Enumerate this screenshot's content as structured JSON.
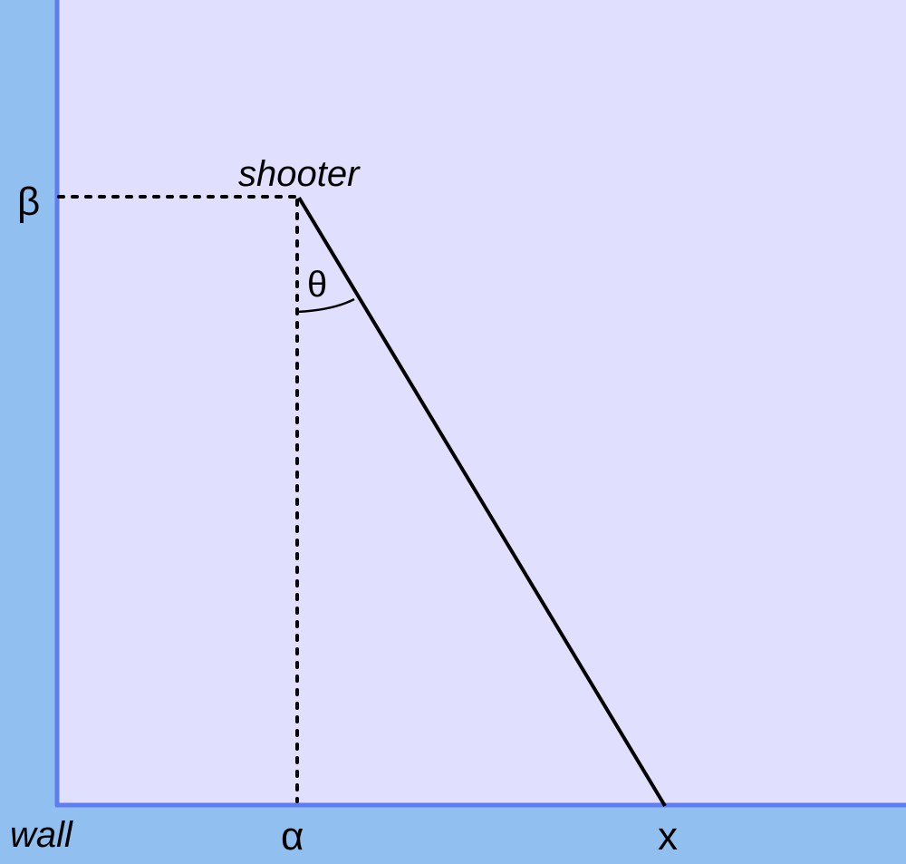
{
  "labels": {
    "shooter": "shooter",
    "beta": "β",
    "theta": "θ",
    "alpha": "α",
    "x": "x",
    "wall": "wall"
  },
  "colors": {
    "field": "#e0e0fe",
    "wall_fill": "#90bff0",
    "wall_edge": "#5f7df0",
    "line": "#000000"
  }
}
